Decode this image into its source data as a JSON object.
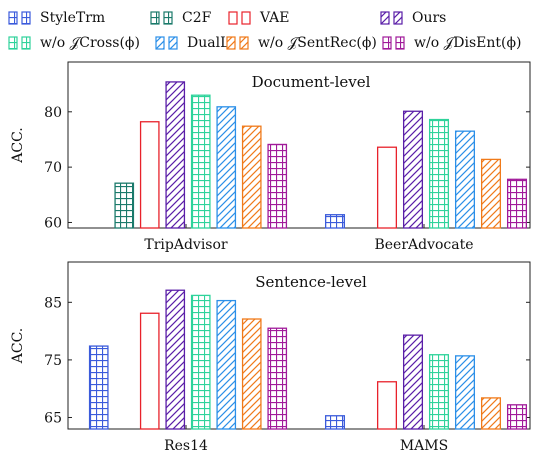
{
  "legend": [
    {
      "key": "styletrm",
      "label": "StyleTrm",
      "color": "#3b5bdb",
      "pattern": "grid"
    },
    {
      "key": "c2f",
      "label": "C2F",
      "color": "#1b7a6b",
      "pattern": "grid"
    },
    {
      "key": "vae",
      "label": "VAE",
      "color": "#e8222b",
      "pattern": "none"
    },
    {
      "key": "ours",
      "label": "Ours",
      "color": "#5a1ea8",
      "pattern": "diag"
    },
    {
      "key": "wo_cross",
      "label": "w/o 𝒥Cross(ϕ)",
      "color": "#2fd39b",
      "pattern": "grid"
    },
    {
      "key": "duall",
      "label": "DualL",
      "color": "#2b8fe8",
      "pattern": "diag"
    },
    {
      "key": "wo_sentrec",
      "label": "w/o 𝒥SentRec(ϕ)",
      "color": "#f07a1a",
      "pattern": "diag"
    },
    {
      "key": "wo_disent",
      "label": "w/o 𝒥DisEnt(ϕ)",
      "color": "#a11a9a",
      "pattern": "grid"
    }
  ],
  "chart_data": [
    {
      "type": "bar",
      "title": "Document-level",
      "ylabel": "ACC.",
      "ylim": [
        59,
        89
      ],
      "yticks": [
        60,
        70,
        80
      ],
      "categories": [
        "TripAdvisor",
        "BeerAdvocate"
      ],
      "grid": false,
      "series": [
        {
          "name": "StyleTrm",
          "values": [
            null,
            61.4
          ]
        },
        {
          "name": "C2F",
          "values": [
            67.1,
            null
          ]
        },
        {
          "name": "VAE",
          "values": [
            78.2,
            73.6
          ]
        },
        {
          "name": "Ours",
          "values": [
            85.4,
            80.1
          ]
        },
        {
          "name": "w/o 𝒥Cross(ϕ)",
          "values": [
            83.0,
            78.6
          ]
        },
        {
          "name": "DualL",
          "values": [
            80.9,
            76.5
          ]
        },
        {
          "name": "w/o 𝒥SentRec(ϕ)",
          "values": [
            77.4,
            71.4
          ]
        },
        {
          "name": "w/o 𝒥DisEnt(ϕ)",
          "values": [
            74.1,
            67.8
          ]
        }
      ]
    },
    {
      "type": "bar",
      "title": "Sentence-level",
      "ylabel": "ACC.",
      "ylim": [
        63,
        92
      ],
      "yticks": [
        65,
        75,
        85
      ],
      "categories": [
        "Res14",
        "MAMS"
      ],
      "grid": false,
      "series": [
        {
          "name": "StyleTrm",
          "values": [
            77.4,
            65.3
          ]
        },
        {
          "name": "C2F",
          "values": [
            null,
            null
          ]
        },
        {
          "name": "VAE",
          "values": [
            83.1,
            71.2
          ]
        },
        {
          "name": "Ours",
          "values": [
            87.1,
            79.3
          ]
        },
        {
          "name": "w/o 𝒥Cross(ϕ)",
          "values": [
            86.2,
            75.9
          ]
        },
        {
          "name": "DualL",
          "values": [
            85.3,
            75.7
          ]
        },
        {
          "name": "w/o 𝒥SentRec(ϕ)",
          "values": [
            82.1,
            68.4
          ]
        },
        {
          "name": "w/o 𝒥DisEnt(ϕ)",
          "values": [
            80.5,
            67.2
          ]
        }
      ]
    }
  ]
}
